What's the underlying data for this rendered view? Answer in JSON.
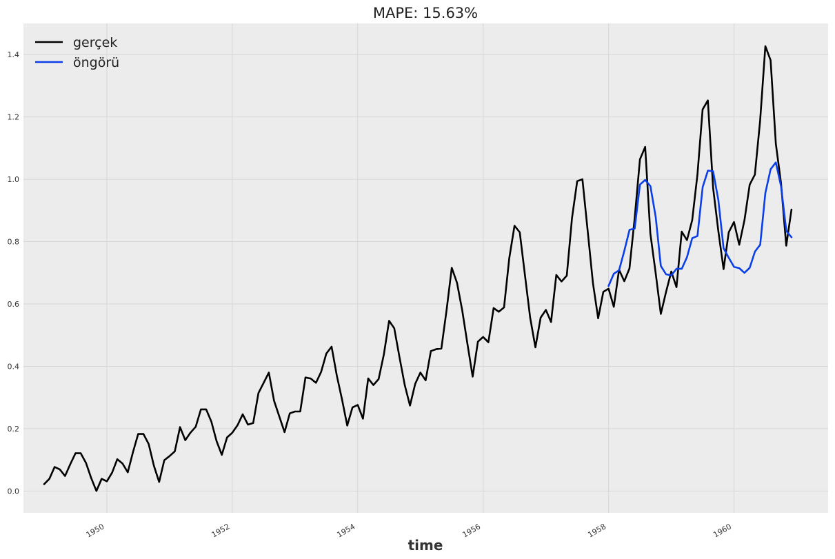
{
  "chart_data": {
    "type": "line",
    "title": "MAPE: 15.63%",
    "xlabel": "time",
    "ylabel": "",
    "xlim": [
      1948.67,
      1961.5
    ],
    "ylim": [
      -0.07,
      1.5
    ],
    "x_ticks": [
      1950,
      1952,
      1954,
      1956,
      1958,
      1960
    ],
    "x_tick_labels": [
      "1950",
      "1952",
      "1954",
      "1956",
      "1958",
      "1960"
    ],
    "y_ticks": [
      0.0,
      0.2,
      0.4,
      0.6,
      0.8,
      1.0,
      1.2,
      1.4
    ],
    "y_tick_labels": [
      "0.0",
      "0.2",
      "0.4",
      "0.6",
      "0.8",
      "1.0",
      "1.2",
      "1.4"
    ],
    "grid": true,
    "legend_position": "top-left",
    "series": [
      {
        "name": "gerçek",
        "color": "#000000",
        "x_start": 1949.0,
        "x_step_years": 0.08333,
        "values": [
          0.022,
          0.039,
          0.077,
          0.069,
          0.048,
          0.086,
          0.121,
          0.121,
          0.09,
          0.042,
          0.0,
          0.039,
          0.031,
          0.059,
          0.102,
          0.088,
          0.06,
          0.125,
          0.183,
          0.183,
          0.151,
          0.081,
          0.029,
          0.099,
          0.112,
          0.127,
          0.205,
          0.163,
          0.187,
          0.206,
          0.262,
          0.262,
          0.222,
          0.16,
          0.116,
          0.172,
          0.187,
          0.211,
          0.246,
          0.213,
          0.218,
          0.314,
          0.347,
          0.38,
          0.289,
          0.239,
          0.189,
          0.249,
          0.255,
          0.255,
          0.364,
          0.361,
          0.347,
          0.382,
          0.441,
          0.463,
          0.37,
          0.293,
          0.21,
          0.268,
          0.276,
          0.232,
          0.361,
          0.34,
          0.359,
          0.438,
          0.546,
          0.522,
          0.429,
          0.34,
          0.274,
          0.344,
          0.38,
          0.355,
          0.449,
          0.455,
          0.457,
          0.579,
          0.716,
          0.668,
          0.579,
          0.471,
          0.367,
          0.479,
          0.494,
          0.477,
          0.587,
          0.575,
          0.589,
          0.747,
          0.851,
          0.83,
          0.693,
          0.556,
          0.461,
          0.556,
          0.581,
          0.542,
          0.693,
          0.672,
          0.691,
          0.876,
          0.994,
          1.0,
          0.835,
          0.668,
          0.554,
          0.639,
          0.649,
          0.591,
          0.71,
          0.673,
          0.714,
          0.876,
          1.064,
          1.104,
          0.826,
          0.701,
          0.568,
          0.639,
          0.704,
          0.654,
          0.832,
          0.805,
          0.869,
          1.015,
          1.224,
          1.253,
          0.973,
          0.834,
          0.712,
          0.83,
          0.863,
          0.79,
          0.869,
          0.983,
          1.015,
          1.188,
          1.427,
          1.382,
          1.114,
          0.988,
          0.787,
          0.903
        ]
      },
      {
        "name": "öngörü",
        "color": "#0a3ee8",
        "x_start": 1958.0,
        "x_step_years": 0.08333,
        "values": [
          0.658,
          0.697,
          0.708,
          0.77,
          0.838,
          0.842,
          0.983,
          0.998,
          0.978,
          0.88,
          0.722,
          0.695,
          0.692,
          0.713,
          0.713,
          0.75,
          0.811,
          0.818,
          0.975,
          1.028,
          1.026,
          0.934,
          0.779,
          0.748,
          0.719,
          0.715,
          0.7,
          0.716,
          0.768,
          0.79,
          0.956,
          1.032,
          1.054,
          0.977,
          0.834,
          0.814
        ]
      }
    ]
  }
}
